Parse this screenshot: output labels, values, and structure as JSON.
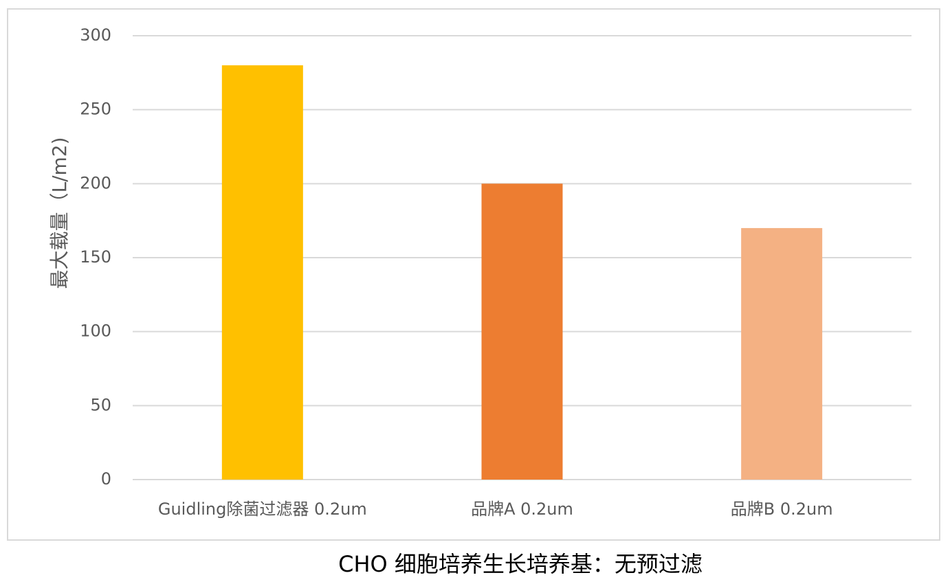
{
  "chart_data": {
    "type": "bar",
    "title": "CHO 细胞培养生长培养基：无预过滤",
    "y_label": "最大载量（L/m2)",
    "categories": [
      "Guidling除菌过滤器 0.2um",
      "品牌A 0.2um",
      "品牌B 0.2um"
    ],
    "values": [
      280,
      200,
      170
    ],
    "colors": [
      "#ffc000",
      "#ed7d31",
      "#f4b183"
    ],
    "ylim": [
      0,
      300
    ],
    "yticks": [
      0,
      50,
      100,
      150,
      200,
      250,
      300
    ],
    "grid": true
  }
}
